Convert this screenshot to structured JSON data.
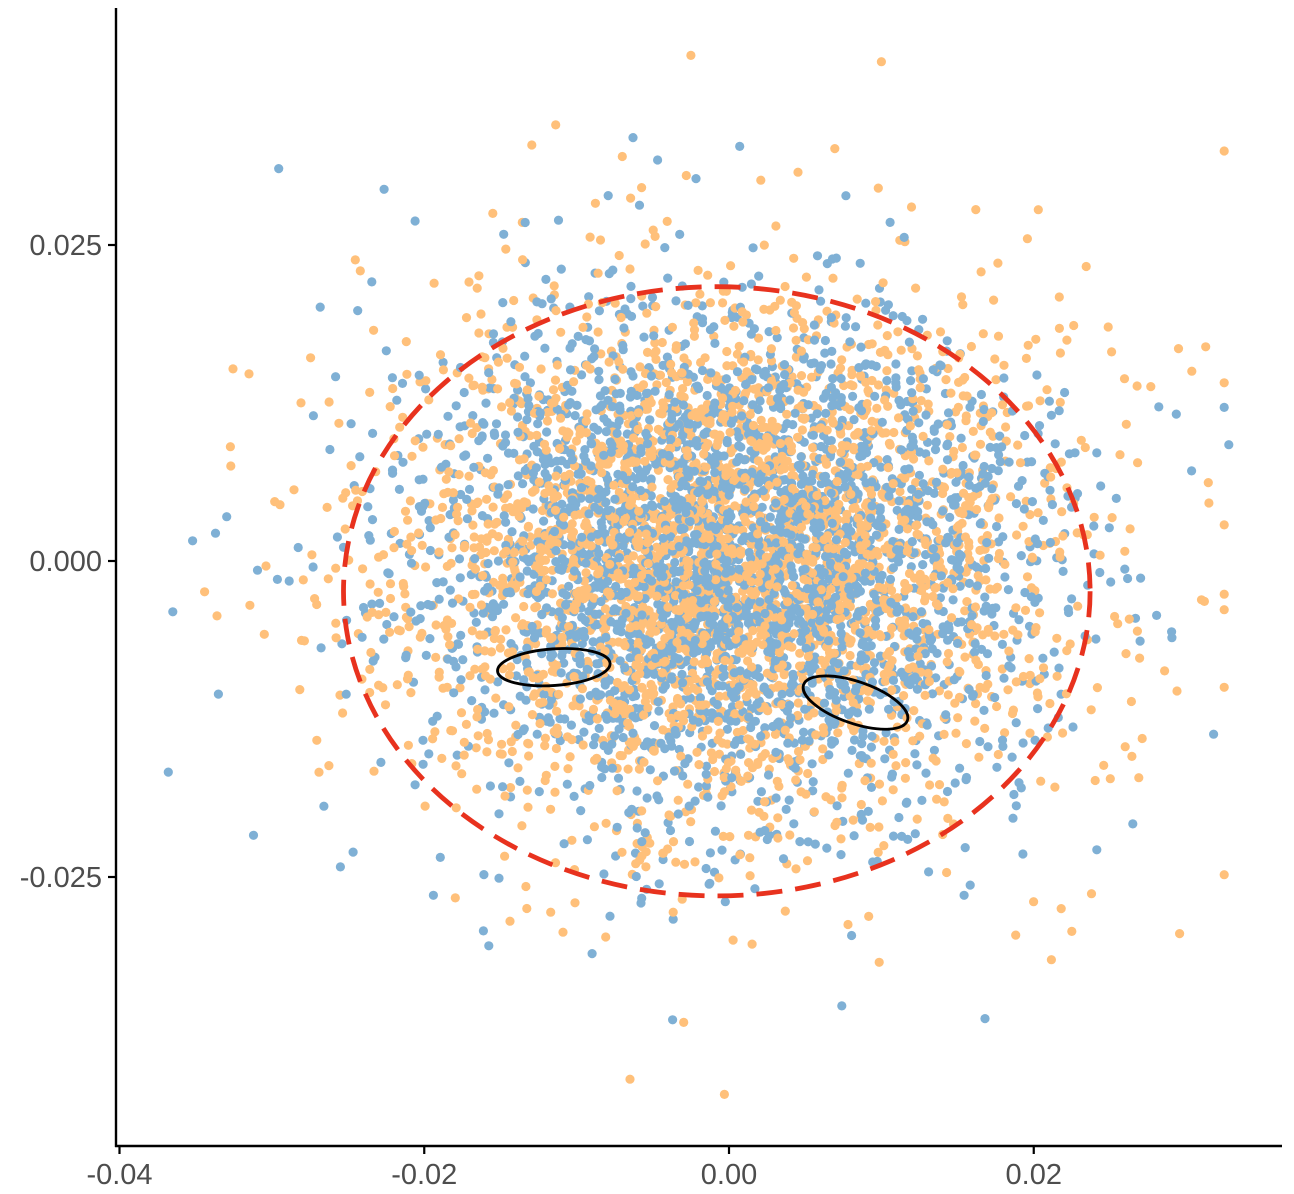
{
  "chart_data": {
    "type": "scatter",
    "title": "",
    "xlabel": "",
    "ylabel": "",
    "xlim": [
      -0.04,
      0.036
    ],
    "ylim": [
      -0.046,
      0.044
    ],
    "x_ticks": [
      -0.04,
      -0.02,
      0.0,
      0.02
    ],
    "x_tick_labels": [
      "-0.04",
      "-0.02",
      "0.00",
      "0.02"
    ],
    "y_ticks": [
      -0.025,
      0.0,
      0.025
    ],
    "y_tick_labels": [
      "-0.025",
      "0.000",
      "0.025"
    ],
    "grid": false,
    "legend": "none",
    "series": [
      {
        "color": "#ffc07a",
        "n_points": 3000,
        "distribution": {
          "center": [
            0.0,
            0.0
          ],
          "sd": [
            0.011,
            0.0105
          ]
        },
        "outliers": [
          [
            -0.0025,
            0.04
          ],
          [
            0.01,
            0.0395
          ],
          [
            -0.007,
            0.032
          ],
          [
            -0.0028,
            0.0305
          ],
          [
            0.0098,
            0.0295
          ],
          [
            -0.0155,
            0.0275
          ],
          [
            0.0162,
            0.0278
          ],
          [
            -0.0315,
            0.0148
          ],
          [
            0.0295,
            0.0168
          ],
          [
            -0.0305,
            -0.0058
          ],
          [
            0.0312,
            -0.0032
          ],
          [
            -0.0065,
            -0.041
          ],
          [
            -0.0003,
            -0.0422
          ],
          [
            0.0218,
            -0.0275
          ],
          [
            0.0225,
            -0.0293
          ]
        ]
      },
      {
        "color": "#7fb0d5",
        "n_points": 3000,
        "distribution": {
          "center": [
            0.0,
            0.0
          ],
          "sd": [
            0.01,
            0.0098
          ]
        },
        "outliers": [
          [
            -0.0063,
            0.0335
          ],
          [
            0.0007,
            0.0328
          ],
          [
            -0.0206,
            0.0269
          ],
          [
            0.0115,
            0.0256
          ],
          [
            -0.0352,
            0.0016
          ],
          [
            -0.0337,
            0.0022
          ],
          [
            0.0328,
            0.0092
          ],
          [
            -0.0368,
            -0.0167
          ],
          [
            0.0318,
            -0.0137
          ],
          [
            -0.0037,
            -0.0363
          ],
          [
            0.0074,
            -0.0352
          ],
          [
            0.0168,
            -0.0362
          ],
          [
            -0.0255,
            -0.0242
          ],
          [
            0.0265,
            -0.0208
          ]
        ]
      }
    ],
    "overlays": [
      {
        "kind": "ellipse",
        "style": "dashed",
        "color": "#e8321e",
        "center": [
          -0.0008,
          -0.0024
        ],
        "radii": [
          0.0245,
          0.0241
        ],
        "angle_deg": 0
      },
      {
        "kind": "ellipse",
        "style": "solid",
        "color": "#000000",
        "center": [
          -0.0115,
          -0.0084
        ],
        "radii": [
          0.0037,
          0.00145
        ],
        "angle_deg": 4
      },
      {
        "kind": "ellipse",
        "style": "solid",
        "color": "#000000",
        "center": [
          0.0083,
          -0.0112
        ],
        "radii": [
          0.0036,
          0.00165
        ],
        "angle_deg": -19
      }
    ]
  }
}
